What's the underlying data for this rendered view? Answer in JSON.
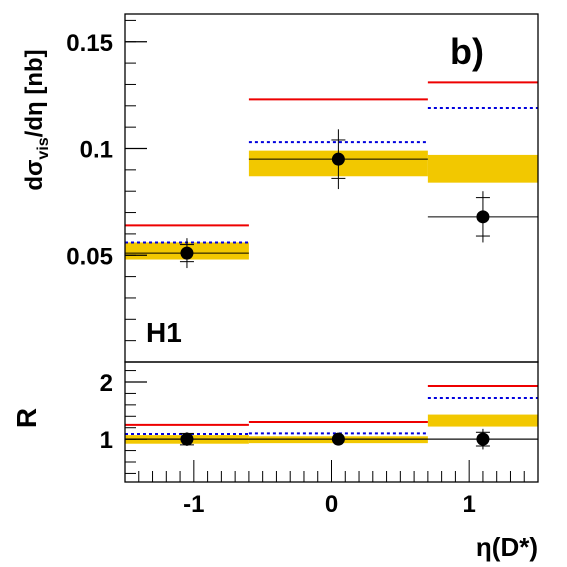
{
  "chart_data": [
    {
      "type": "line",
      "panel": "upper",
      "label": "b)",
      "experiment_label": "H1",
      "ylabel": {
        "main": "dσ",
        "sub": "vis",
        "rest": "/dη [nb]"
      },
      "ylim": [
        0.0,
        0.163
      ],
      "yticks": [
        0.05,
        0.1,
        0.15
      ],
      "ytick_labels": [
        "0.05",
        "0.1",
        "0.15"
      ],
      "x_bins": [
        [
          -1.5,
          -0.6
        ],
        [
          -0.6,
          0.7
        ],
        [
          0.7,
          1.5
        ]
      ],
      "data": {
        "x": [
          -1.05,
          0.05,
          1.1
        ],
        "y": [
          0.051,
          0.095,
          0.068
        ],
        "stat_err": [
          0.004,
          0.009,
          0.009
        ],
        "tot_err": [
          0.007,
          0.014,
          0.012
        ]
      },
      "band": {
        "low": [
          0.048,
          0.087,
          0.084
        ],
        "high": [
          0.056,
          0.099,
          0.097
        ],
        "color": "#f2c800"
      },
      "red_line": {
        "values": [
          0.064,
          0.123,
          0.131
        ],
        "color": "#ee0000"
      },
      "blue_dotted": {
        "values": [
          0.056,
          0.103,
          0.119
        ],
        "color": "#0000dd"
      }
    },
    {
      "type": "line",
      "panel": "lower",
      "ylabel": "R",
      "ylim": [
        0.25,
        2.35
      ],
      "yticks": [
        1,
        2
      ],
      "ytick_labels": [
        "1",
        "2"
      ],
      "xlabel": "η(D*)",
      "xlim": [
        -1.5,
        1.5
      ],
      "xticks": [
        -1,
        0,
        1
      ],
      "xtick_labels": [
        "-1",
        "0",
        "1"
      ],
      "x_bins": [
        [
          -1.5,
          -0.6
        ],
        [
          -0.6,
          0.7
        ],
        [
          0.7,
          1.5
        ]
      ],
      "data": {
        "x": [
          -1.05,
          0.05,
          1.1
        ],
        "y": [
          1.0,
          1.0,
          1.0
        ],
        "stat_err": [
          0.1,
          0.08,
          0.12
        ],
        "tot_err": [
          0.12,
          0.0,
          0.18
        ]
      },
      "band": {
        "low": [
          0.92,
          0.93,
          1.22
        ],
        "high": [
          1.07,
          1.05,
          1.43
        ],
        "color": "#f2c800"
      },
      "red_line": {
        "values": [
          1.25,
          1.3,
          1.93
        ],
        "color": "#ee0000"
      },
      "blue_dotted": {
        "values": [
          1.09,
          1.1,
          1.72
        ],
        "color": "#0000dd"
      },
      "unity_line": 1
    }
  ]
}
